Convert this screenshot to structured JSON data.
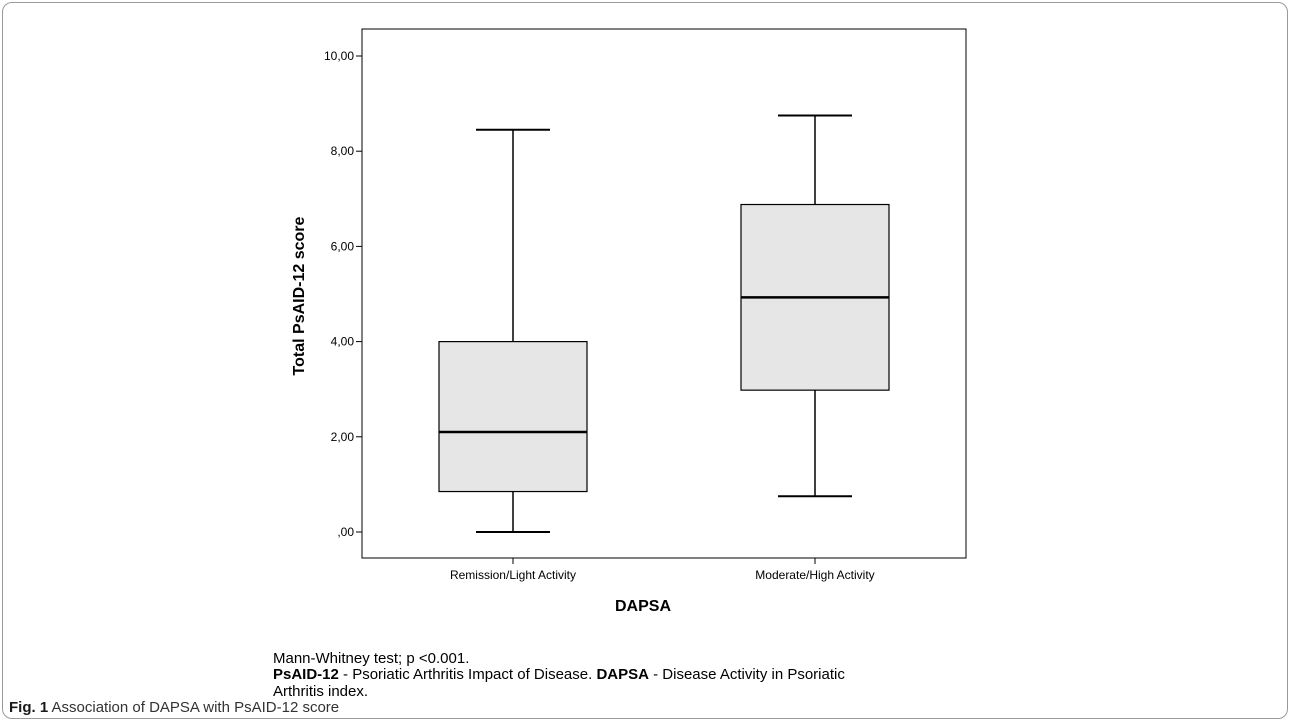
{
  "chart_data": {
    "type": "boxplot",
    "xlabel": "DAPSA",
    "ylabel": "Total PsAID-12 score",
    "ylim": [
      0,
      10
    ],
    "yticks": [
      {
        "value": 0,
        "label": ",00"
      },
      {
        "value": 2,
        "label": "2,00"
      },
      {
        "value": 4,
        "label": "4,00"
      },
      {
        "value": 6,
        "label": "6,00"
      },
      {
        "value": 8,
        "label": "8,00"
      },
      {
        "value": 10,
        "label": "10,00"
      }
    ],
    "categories": [
      "Remission/Light Activity",
      "Moderate/High Activity"
    ],
    "boxes": [
      {
        "category": "Remission/Light Activity",
        "min": 0.0,
        "q1": 0.85,
        "median": 2.1,
        "q3": 4.0,
        "max": 8.45
      },
      {
        "category": "Moderate/High Activity",
        "min": 0.75,
        "q1": 2.98,
        "median": 4.93,
        "q3": 6.88,
        "max": 8.75
      }
    ],
    "box_fill": "#e6e6e6",
    "grid": false
  },
  "notes": {
    "stat_test": "Mann-Whitney test; p <0.001.",
    "abbr1_term": "PsAID-12",
    "abbr1_def": " - Psoriatic Arthritis Impact of Disease. ",
    "abbr2_term": "DAPSA",
    "abbr2_def": " - Disease Activity in Psoriatic Arthritis index."
  },
  "caption": {
    "label": "Fig. 1",
    "text": " Association of DAPSA with PsAID-12 score"
  }
}
